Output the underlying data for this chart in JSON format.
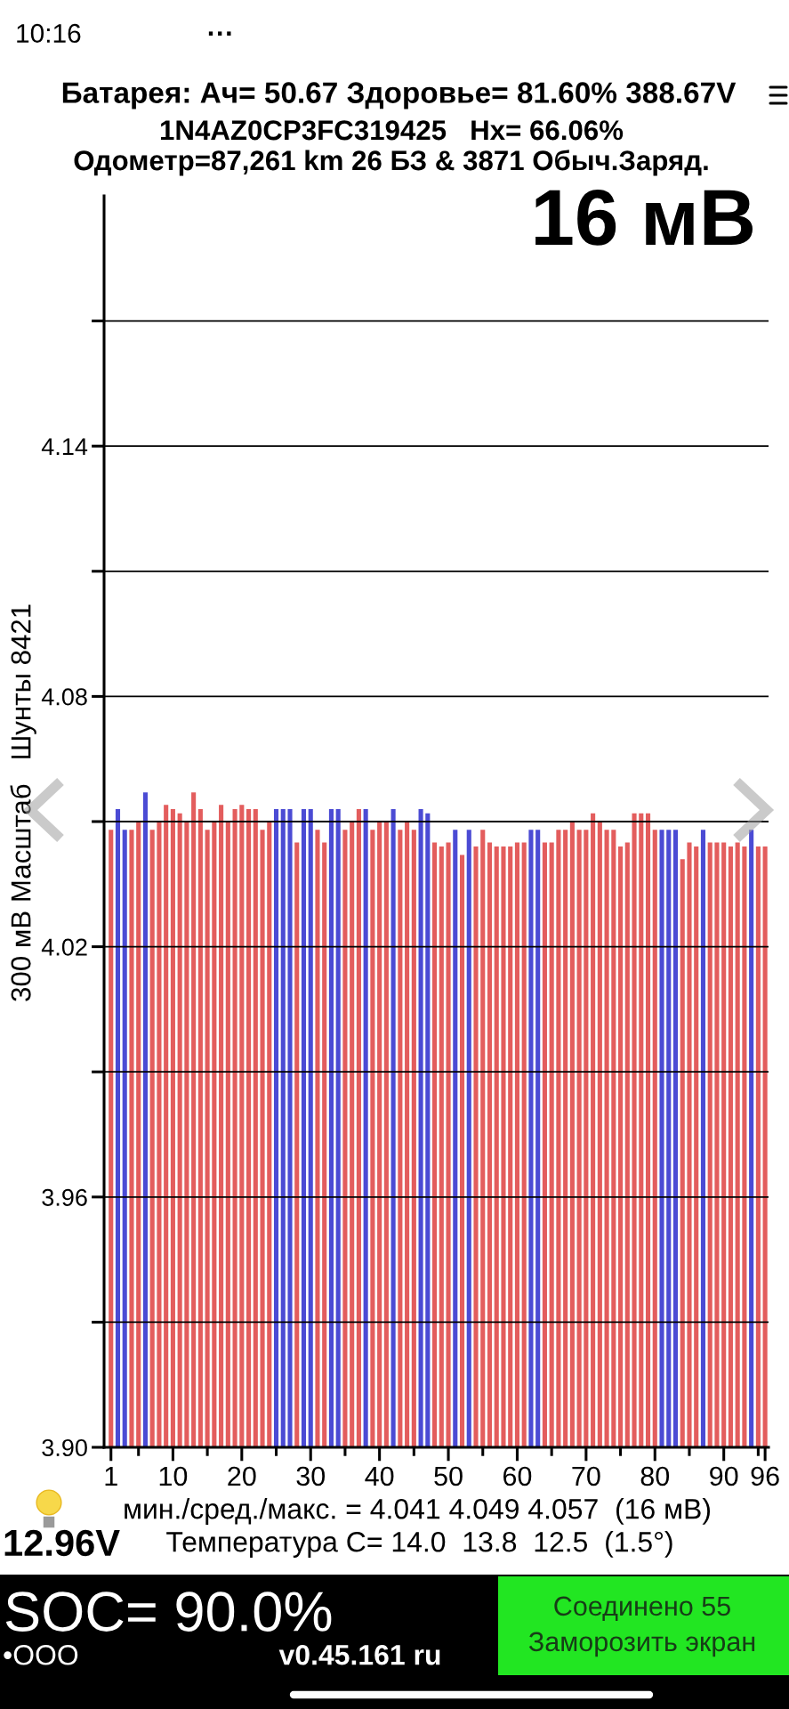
{
  "chart_data": {
    "type": "bar",
    "title": "Батарея: Ач= 50.67 Здоровье= 81.60% 388.67V",
    "subtitle": "1N4AZ0CP3FC319425   Hx= 66.06%\nОдометр=87,261 km 26 БЗ & 3871 Обыч.Заряд.",
    "ylabel": "300 мВ Масштаб   Шунты 8421",
    "x": [
      1,
      2,
      3,
      4,
      5,
      6,
      7,
      8,
      9,
      10,
      11,
      12,
      13,
      14,
      15,
      16,
      17,
      18,
      19,
      20,
      21,
      22,
      23,
      24,
      25,
      26,
      27,
      28,
      29,
      30,
      31,
      32,
      33,
      34,
      35,
      36,
      37,
      38,
      39,
      40,
      41,
      42,
      43,
      44,
      45,
      46,
      47,
      48,
      49,
      50,
      51,
      52,
      53,
      54,
      55,
      56,
      57,
      58,
      59,
      60,
      61,
      62,
      63,
      64,
      65,
      66,
      67,
      68,
      69,
      70,
      71,
      72,
      73,
      74,
      75,
      76,
      77,
      78,
      79,
      80,
      81,
      82,
      83,
      84,
      85,
      86,
      87,
      88,
      89,
      90,
      91,
      92,
      93,
      94,
      95,
      96
    ],
    "values": [
      4.048,
      4.053,
      4.048,
      4.048,
      4.05,
      4.057,
      4.048,
      4.05,
      4.054,
      4.053,
      4.052,
      4.05,
      4.057,
      4.053,
      4.048,
      4.05,
      4.054,
      4.05,
      4.053,
      4.054,
      4.053,
      4.053,
      4.048,
      4.05,
      4.053,
      4.053,
      4.053,
      4.045,
      4.053,
      4.053,
      4.048,
      4.045,
      4.053,
      4.053,
      4.048,
      4.05,
      4.053,
      4.053,
      4.048,
      4.05,
      4.05,
      4.053,
      4.048,
      4.05,
      4.048,
      4.053,
      4.052,
      4.045,
      4.044,
      4.045,
      4.048,
      4.042,
      4.048,
      4.044,
      4.048,
      4.045,
      4.044,
      4.044,
      4.044,
      4.045,
      4.045,
      4.048,
      4.048,
      4.045,
      4.045,
      4.048,
      4.048,
      4.05,
      4.048,
      4.048,
      4.052,
      4.05,
      4.048,
      4.048,
      4.044,
      4.045,
      4.052,
      4.052,
      4.052,
      4.048,
      4.048,
      4.048,
      4.048,
      4.041,
      4.045,
      4.044,
      4.048,
      4.045,
      4.045,
      4.045,
      4.044,
      4.045,
      4.044,
      4.048,
      4.044,
      4.044
    ],
    "colors": [
      "#e35d5d",
      "#4b4bd4",
      "#4b4bd4",
      "#e35d5d",
      "#e35d5d",
      "#4b4bd4",
      "#e35d5d",
      "#e35d5d",
      "#e35d5d",
      "#e35d5d",
      "#e35d5d",
      "#e35d5d",
      "#e35d5d",
      "#e35d5d",
      "#e35d5d",
      "#e35d5d",
      "#e35d5d",
      "#e35d5d",
      "#e35d5d",
      "#e35d5d",
      "#e35d5d",
      "#e35d5d",
      "#e35d5d",
      "#e35d5d",
      "#4b4bd4",
      "#4b4bd4",
      "#4b4bd4",
      "#e35d5d",
      "#4b4bd4",
      "#4b4bd4",
      "#e35d5d",
      "#e35d5d",
      "#4b4bd4",
      "#4b4bd4",
      "#e35d5d",
      "#e35d5d",
      "#e35d5d",
      "#4b4bd4",
      "#e35d5d",
      "#e35d5d",
      "#e35d5d",
      "#4b4bd4",
      "#e35d5d",
      "#e35d5d",
      "#e35d5d",
      "#4b4bd4",
      "#4b4bd4",
      "#e35d5d",
      "#e35d5d",
      "#e35d5d",
      "#4b4bd4",
      "#e35d5d",
      "#4b4bd4",
      "#e35d5d",
      "#e35d5d",
      "#e35d5d",
      "#e35d5d",
      "#e35d5d",
      "#e35d5d",
      "#e35d5d",
      "#e35d5d",
      "#4b4bd4",
      "#4b4bd4",
      "#e35d5d",
      "#e35d5d",
      "#e35d5d",
      "#e35d5d",
      "#e35d5d",
      "#e35d5d",
      "#e35d5d",
      "#e35d5d",
      "#e35d5d",
      "#e35d5d",
      "#e35d5d",
      "#e35d5d",
      "#e35d5d",
      "#e35d5d",
      "#e35d5d",
      "#e35d5d",
      "#e35d5d",
      "#4b4bd4",
      "#4b4bd4",
      "#4b4bd4",
      "#e35d5d",
      "#e35d5d",
      "#e35d5d",
      "#4b4bd4",
      "#e35d5d",
      "#e35d5d",
      "#e35d5d",
      "#e35d5d",
      "#e35d5d",
      "#e35d5d",
      "#4b4bd4",
      "#e35d5d",
      "#e35d5d"
    ],
    "xlim": [
      0,
      96.5
    ],
    "xticks": [
      1,
      {
        "value": 5,
        "label": null
      },
      10,
      {
        "value": 15,
        "label": null
      },
      20,
      {
        "value": 25,
        "label": null
      },
      30,
      {
        "value": 35,
        "label": null
      },
      40,
      {
        "value": 45,
        "label": null
      },
      50,
      {
        "value": 55,
        "label": null
      },
      60,
      {
        "value": 65,
        "label": null
      },
      70,
      {
        "value": 75,
        "label": null
      },
      80,
      {
        "value": 85,
        "label": null
      },
      90,
      {
        "value": 95,
        "label": null
      },
      96
    ],
    "ylim": [
      3.9,
      4.2
    ],
    "yticks": [
      {
        "value": 3.9,
        "label": "3.90"
      },
      {
        "value": 3.93,
        "label": null
      },
      3.96,
      {
        "value": 3.99,
        "label": null
      },
      4.02,
      {
        "value": 4.05,
        "label": null
      },
      4.08,
      {
        "value": 4.11,
        "label": null
      },
      4.14,
      {
        "value": 4.17,
        "label": null
      }
    ],
    "grid": "y",
    "annotations": [
      "16 мВ",
      "мин./сред./макс. = 4.041 4.049 4.057  (16 мВ)",
      "Температура С= 14.0  13.8  12.5  (1.5°)",
      "12.96V",
      "SOC= 90.0%",
      "•OOO",
      "v0.45.161 ru",
      "Соединено 55",
      "Заморозить экран",
      "10:16",
      "···"
    ]
  }
}
